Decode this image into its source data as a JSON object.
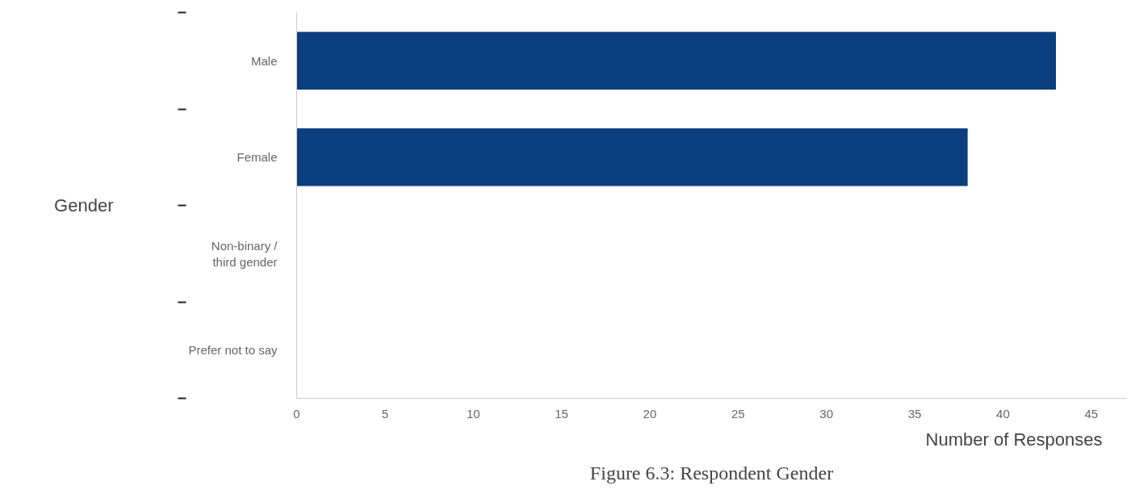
{
  "chart_data": {
    "type": "bar",
    "orientation": "horizontal",
    "title": "Figure 6.3: Respondent Gender",
    "xlabel": "Number of Responses",
    "ylabel": "Gender",
    "categories": [
      "Male",
      "Female",
      "Non-binary /\nthird gender",
      "Prefer not to say"
    ],
    "values": [
      43,
      38,
      0,
      0
    ],
    "color": "#0b3f7f",
    "xlim": [
      0,
      47
    ],
    "xticks": [
      0,
      5,
      10,
      15,
      20,
      25,
      30,
      35,
      40,
      45
    ],
    "grid": false
  }
}
